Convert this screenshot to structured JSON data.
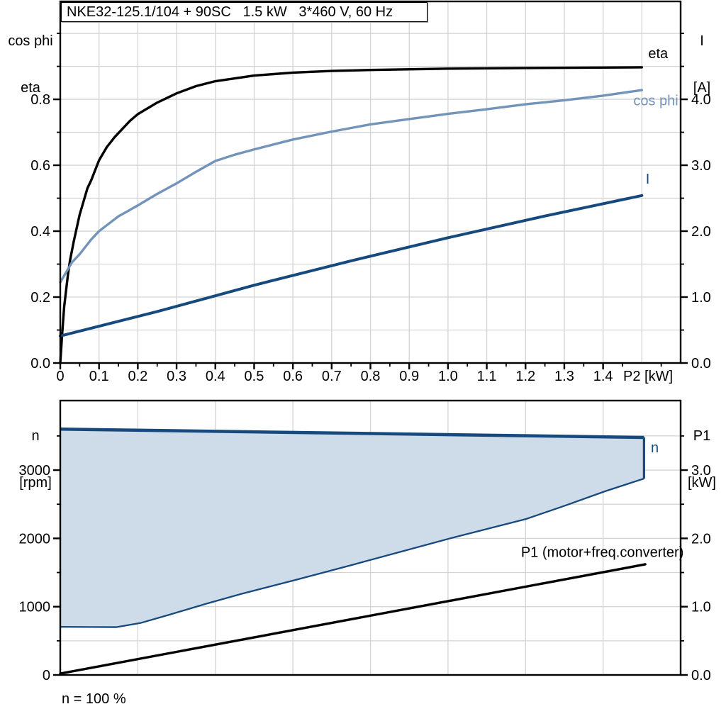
{
  "colors": {
    "dark_blue": "#16497e",
    "light_blue": "#7394ba",
    "area_fill": "#cedbe8",
    "grid": "#d4d4d4",
    "frame": "#000000"
  },
  "footnote": "n = 100 %",
  "chart_data": [
    {
      "id": "top",
      "type": "line",
      "title": "NKE32-125.1/104 + 90SC   1.5 kW   3*460 V, 60 Hz",
      "x_axis": {
        "label": "P2 [kW]",
        "min": 0,
        "max": 1.6,
        "grid_step": 0.1,
        "minor_step": 0.05,
        "tick_values": [
          0,
          0.1,
          0.2,
          0.3,
          0.4,
          0.5,
          0.6,
          0.7,
          0.8,
          0.9,
          1.0,
          1.1,
          1.2,
          1.3,
          1.4
        ],
        "tick_labels": [
          "0",
          "0.1",
          "0.2",
          "0.3",
          "0.4",
          "0.5",
          "0.6",
          "0.7",
          "0.8",
          "0.9",
          "1.0",
          "1.1",
          "1.2",
          "1.3",
          "1.4"
        ]
      },
      "y_left": {
        "label_lines": [
          "cos phi",
          "eta"
        ],
        "min": 0,
        "max": 1.097,
        "grid_step": 0.1,
        "minor_step": 0.1,
        "tick_values": [
          0,
          0.2,
          0.4,
          0.6,
          0.8
        ],
        "tick_labels": [
          "0.0",
          "0.2",
          "0.4",
          "0.6",
          "0.8"
        ]
      },
      "y_right": {
        "label_lines": [
          "I",
          "[A]"
        ],
        "min": 0,
        "max": 5.485,
        "minor_step": 0.5,
        "tick_values": [
          0,
          1,
          2,
          3,
          4
        ],
        "tick_labels": [
          "0.0",
          "1.0",
          "2.0",
          "3.0",
          "4.0"
        ]
      },
      "series": [
        {
          "name": "eta",
          "axis": "left",
          "color": "#000000",
          "width": 3.4,
          "label": "eta",
          "label_at": [
            1.542,
            0.925
          ],
          "label_anchor": "middle",
          "label_color": "#000000",
          "points": [
            [
              0,
              0
            ],
            [
              0.005,
              0.09
            ],
            [
              0.01,
              0.17
            ],
            [
              0.015,
              0.22
            ],
            [
              0.02,
              0.27
            ],
            [
              0.025,
              0.31
            ],
            [
              0.035,
              0.37
            ],
            [
              0.05,
              0.45
            ],
            [
              0.06,
              0.49
            ],
            [
              0.07,
              0.53
            ],
            [
              0.08,
              0.555
            ],
            [
              0.09,
              0.585
            ],
            [
              0.1,
              0.615
            ],
            [
              0.11,
              0.635
            ],
            [
              0.12,
              0.655
            ],
            [
              0.13,
              0.67
            ],
            [
              0.14,
              0.685
            ],
            [
              0.16,
              0.71
            ],
            [
              0.18,
              0.735
            ],
            [
              0.2,
              0.755
            ],
            [
              0.25,
              0.79
            ],
            [
              0.3,
              0.818
            ],
            [
              0.35,
              0.84
            ],
            [
              0.4,
              0.855
            ],
            [
              0.5,
              0.872
            ],
            [
              0.6,
              0.881
            ],
            [
              0.7,
              0.886
            ],
            [
              0.8,
              0.889
            ],
            [
              1.0,
              0.893
            ],
            [
              1.2,
              0.895
            ],
            [
              1.5,
              0.897
            ]
          ]
        },
        {
          "name": "cos phi",
          "axis": "left",
          "color": "#7394ba",
          "width": 3.4,
          "label": "cos phi",
          "label_at": [
            1.536,
            0.782
          ],
          "label_anchor": "middle",
          "label_color": "#7394ba",
          "points": [
            [
              0,
              0.245
            ],
            [
              0.02,
              0.285
            ],
            [
              0.03,
              0.305
            ],
            [
              0.05,
              0.33
            ],
            [
              0.07,
              0.36
            ],
            [
              0.08,
              0.375
            ],
            [
              0.1,
              0.4
            ],
            [
              0.12,
              0.418
            ],
            [
              0.15,
              0.445
            ],
            [
              0.17,
              0.458
            ],
            [
              0.2,
              0.478
            ],
            [
              0.25,
              0.513
            ],
            [
              0.3,
              0.545
            ],
            [
              0.35,
              0.58
            ],
            [
              0.4,
              0.613
            ],
            [
              0.45,
              0.632
            ],
            [
              0.5,
              0.648
            ],
            [
              0.6,
              0.678
            ],
            [
              0.7,
              0.702
            ],
            [
              0.8,
              0.724
            ],
            [
              0.9,
              0.74
            ],
            [
              1.0,
              0.756
            ],
            [
              1.1,
              0.77
            ],
            [
              1.2,
              0.785
            ],
            [
              1.3,
              0.797
            ],
            [
              1.4,
              0.811
            ],
            [
              1.5,
              0.828
            ]
          ]
        },
        {
          "name": "I",
          "axis": "right",
          "color": "#16497e",
          "width": 4,
          "label": "I",
          "label_at": [
            1.515,
            2.72
          ],
          "label_anchor": "middle",
          "label_color": "#16497e",
          "points": [
            [
              0,
              0.41
            ],
            [
              0.25,
              0.78
            ],
            [
              0.5,
              1.18
            ],
            [
              0.75,
              1.55
            ],
            [
              1.0,
              1.9
            ],
            [
              1.25,
              2.23
            ],
            [
              1.5,
              2.54
            ]
          ]
        }
      ]
    },
    {
      "id": "bottom",
      "type": "area+line",
      "title": "",
      "x_axis": {
        "label": "",
        "min": 0,
        "max": 1,
        "grid_step": 0.125,
        "minor_step": 0,
        "tick_values": [],
        "tick_labels": []
      },
      "y_left": {
        "label_lines": [
          "n",
          "[rpm]"
        ],
        "min": 0,
        "max": 4018,
        "grid_step": 500,
        "minor_step": 500,
        "tick_values": [
          0,
          1000,
          2000,
          3000
        ],
        "tick_labels": [
          "0",
          "1000",
          "2000",
          "3000"
        ]
      },
      "y_right": {
        "label_lines": [
          "P1",
          "[kW]"
        ],
        "min": 0,
        "max": 4.018,
        "minor_step": 0.5,
        "tick_values": [
          0,
          1,
          2,
          3
        ],
        "tick_labels": [
          "0.0",
          "1.0",
          "2.0",
          "3.0"
        ]
      },
      "series": [
        {
          "name": "n",
          "type": "area",
          "axis": "left",
          "color": "#16497e",
          "fill": "#cedbe8",
          "label": "n",
          "label_at": [
            0.952,
            3260
          ],
          "label_anchor": "start",
          "label_color": "#16497e",
          "polygon": [
            [
              0,
              3600
            ],
            [
              0.941,
              3478
            ],
            [
              0.941,
              2876
            ],
            [
              0.878,
              2689
            ],
            [
              0.814,
              2481
            ],
            [
              0.751,
              2284
            ],
            [
              0.626,
              1994
            ],
            [
              0.474,
              1620
            ],
            [
              0.383,
              1400
            ],
            [
              0.291,
              1185
            ],
            [
              0.234,
              1040
            ],
            [
              0.177,
              885
            ],
            [
              0.129,
              760
            ],
            [
              0.09,
              700
            ],
            [
              0,
              705
            ]
          ]
        },
        {
          "name": "P1 (motor+freq.converter)",
          "type": "line",
          "axis": "right",
          "color": "#000000",
          "width": 3.4,
          "label": "P1 (motor+freq.converter)",
          "label_at": [
            1.005,
            1.73
          ],
          "label_anchor": "end",
          "label_color": "#000000",
          "points": [
            [
              0,
              0.02
            ],
            [
              0.943,
              1.62
            ]
          ]
        }
      ]
    }
  ]
}
